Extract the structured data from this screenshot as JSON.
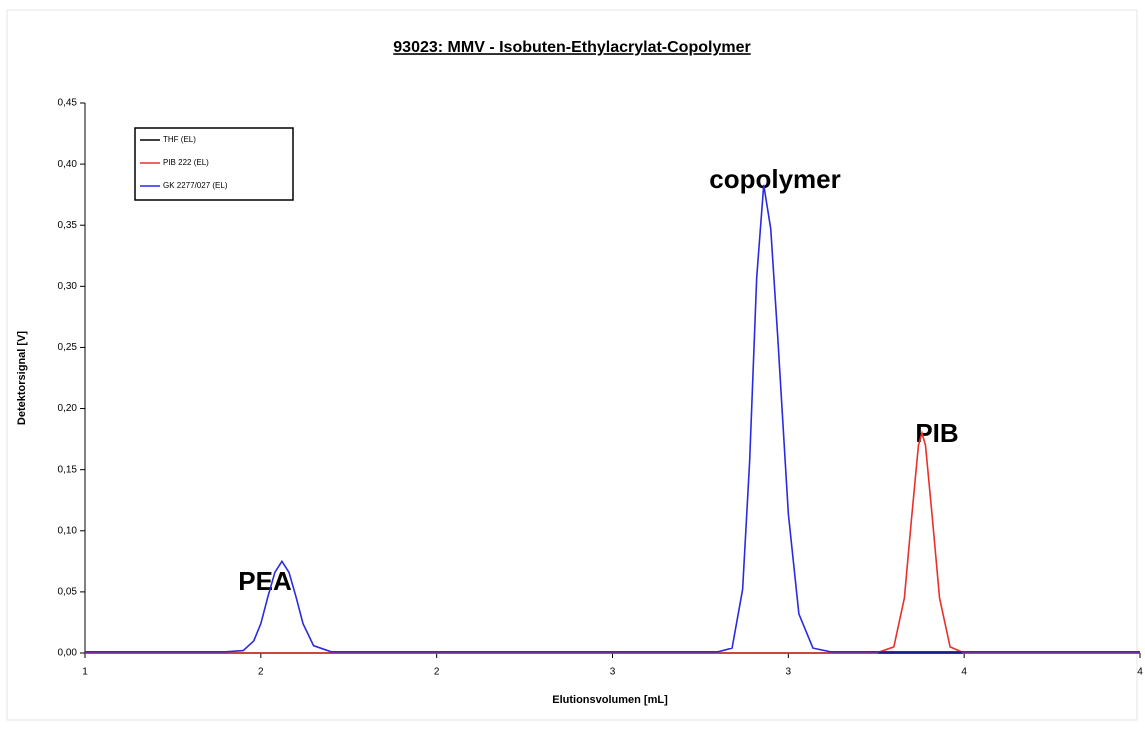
{
  "chart_data": {
    "type": "line",
    "title": "93023: MMV - Isobuten-Ethylacrylat-Copolymer",
    "xlabel": "Elutionsvolumen [mL]",
    "ylabel": "Detektorsignal [V]",
    "annotations": [
      "PEA",
      "copolymer",
      "PIB"
    ],
    "xlim": [
      1,
      4
    ],
    "ylim": [
      0,
      0.45
    ],
    "xticks": [
      {
        "value": 1,
        "label": "1"
      },
      {
        "value": 1.5,
        "label": "2"
      },
      {
        "value": 2,
        "label": "2"
      },
      {
        "value": 2.5,
        "label": "3"
      },
      {
        "value": 3,
        "label": "3"
      },
      {
        "value": 3.5,
        "label": "4"
      },
      {
        "value": 4,
        "label": "4"
      }
    ],
    "yticks": [
      {
        "value": 0,
        "label": "0,00"
      },
      {
        "value": 0.05,
        "label": "0,05"
      },
      {
        "value": 0.1,
        "label": "0,10"
      },
      {
        "value": 0.15,
        "label": "0,15"
      },
      {
        "value": 0.2,
        "label": "0,20"
      },
      {
        "value": 0.25,
        "label": "0,25"
      },
      {
        "value": 0.3,
        "label": "0,30"
      },
      {
        "value": 0.35,
        "label": "0,35"
      },
      {
        "value": 0.4,
        "label": "0,40"
      },
      {
        "value": 0.45,
        "label": "0,45"
      }
    ],
    "legend": "upper left",
    "x": [
      1.0,
      1.2,
      1.4,
      1.45,
      1.48,
      1.5,
      1.52,
      1.54,
      1.56,
      1.58,
      1.6,
      1.62,
      1.65,
      1.7,
      1.8,
      2.0,
      2.4,
      2.7,
      2.8,
      2.84,
      2.87,
      2.89,
      2.91,
      2.93,
      2.95,
      2.97,
      3.0,
      3.03,
      3.07,
      3.12,
      3.2,
      3.25,
      3.3,
      3.33,
      3.35,
      3.37,
      3.38,
      3.39,
      3.41,
      3.43,
      3.46,
      3.5,
      3.6,
      3.8,
      4.0
    ],
    "series": [
      {
        "name": "THF (EL)",
        "color": "#000000",
        "values": [
          0,
          0,
          0,
          0,
          0,
          0,
          0,
          0,
          0,
          0,
          0,
          0,
          0,
          0,
          0,
          0,
          0,
          0,
          0,
          0,
          0,
          0,
          0,
          0,
          0,
          0,
          0,
          0,
          0,
          0,
          0,
          0,
          0,
          0,
          0,
          0,
          0,
          0,
          0,
          0,
          0,
          0,
          0,
          0,
          0
        ]
      },
      {
        "name": "PIB 222 (EL)",
        "color": "#e8302a",
        "values": [
          0,
          0,
          0,
          0,
          0,
          0,
          0,
          0,
          0,
          0,
          0,
          0,
          0,
          0,
          0,
          0,
          0,
          0,
          0,
          0,
          0,
          0,
          0,
          0,
          0,
          0,
          0,
          0,
          0,
          0,
          0,
          0,
          0.005,
          0.045,
          0.109,
          0.17,
          0.18,
          0.17,
          0.109,
          0.045,
          0.005,
          0,
          0,
          0,
          0
        ]
      },
      {
        "name": "GK 2277/027 (EL)",
        "color": "#2a2ae0",
        "values": [
          0.001,
          0.001,
          0.001,
          0.002,
          0.01,
          0.024,
          0.046,
          0.066,
          0.075,
          0.066,
          0.046,
          0.024,
          0.006,
          0.001,
          0.001,
          0.001,
          0.001,
          0.001,
          0.001,
          0.004,
          0.052,
          0.157,
          0.307,
          0.383,
          0.347,
          0.258,
          0.114,
          0.032,
          0.004,
          0.001,
          0.001,
          0.001,
          0.001,
          0.001,
          0.001,
          0.001,
          0.001,
          0.001,
          0.001,
          0.001,
          0.001,
          0.001,
          0.001,
          0.001,
          0.001
        ]
      }
    ]
  }
}
